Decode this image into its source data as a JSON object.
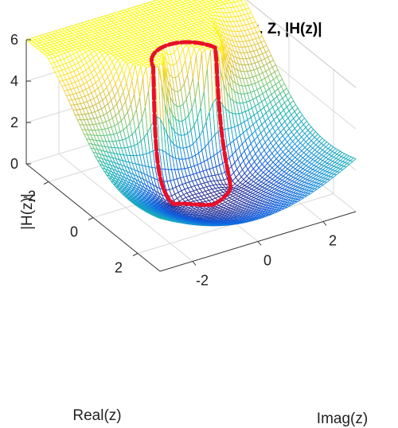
{
  "chart_data": {
    "type": "surface",
    "title": "Μέτρο του Μετασχ. Z, |H(z)|",
    "xlabel": "Real(z)",
    "ylabel": "Imag(z)",
    "zlabel": "|H(z)|",
    "xticks": [
      "-2",
      "0",
      "2"
    ],
    "yticks": [
      "-2",
      "0",
      "2"
    ],
    "zticks": [
      "0",
      "2",
      "4",
      "6"
    ],
    "xlim": [
      -3,
      3
    ],
    "ylim": [
      -3,
      3
    ],
    "zlim": [
      0,
      6
    ],
    "z_clip_max": 6,
    "grid": true,
    "colormap": "parula",
    "zeros": [
      [
        1,
        0
      ],
      [
        0.5,
        -0.866
      ],
      [
        0.5,
        0.866
      ]
    ],
    "poles": [
      [
        -0.5,
        -0.866
      ],
      [
        -0.5,
        0.866
      ]
    ],
    "unit_circle": {
      "color": "#e8102a",
      "style": "dashed",
      "series": "|H(e^{jω})| on |z|=1"
    },
    "mesh_resolution": 61
  }
}
